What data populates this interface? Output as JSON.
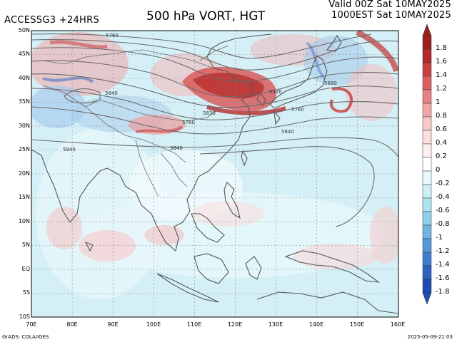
{
  "header": {
    "model_label": "ACCESSG3 +24HRS",
    "title": "500 hPa VORT, HGT",
    "valid_line": "Valid 00Z Sat 10MAY2025",
    "init_line": "1000EST Sat 10MAY2025"
  },
  "map": {
    "lat_labels": [
      "50N",
      "45N",
      "40N",
      "35N",
      "30N",
      "25N",
      "20N",
      "15N",
      "10N",
      "5N",
      "EQ",
      "5S",
      "10S"
    ],
    "lon_labels": [
      "70E",
      "80E",
      "90E",
      "100E",
      "110E",
      "120E",
      "130E",
      "140E",
      "150E",
      "160E"
    ],
    "contour_labels": [
      {
        "text": "5760",
        "name": "contour-label-5760-north"
      },
      {
        "text": "5840",
        "name": "contour-label-5840-tibet"
      },
      {
        "text": "5760",
        "name": "contour-label-5760-china"
      },
      {
        "text": "5830",
        "name": "contour-label-5830"
      },
      {
        "text": "5520",
        "name": "contour-label-5520"
      },
      {
        "text": "5760",
        "name": "contour-label-5760-japan"
      },
      {
        "text": "5680",
        "name": "contour-label-5680"
      },
      {
        "text": "5840",
        "name": "contour-label-5840-east"
      },
      {
        "text": "5840",
        "name": "contour-label-5840-west"
      },
      {
        "text": "5840",
        "name": "contour-label-5840-south-china"
      }
    ]
  },
  "colorbar": {
    "labels": [
      "1.8",
      "1.6",
      "1.4",
      "1.2",
      "1",
      "0.8",
      "0.6",
      "0.4",
      "0.2",
      "0",
      "-0.2",
      "-0.4",
      "-0.6",
      "-0.8",
      "-1",
      "-1.2",
      "-1.4",
      "-1.6",
      "-1.8"
    ],
    "colors": [
      "#9c1f1f",
      "#b52a2a",
      "#cc3f3f",
      "#dd5f5f",
      "#e98282",
      "#f2a7a7",
      "#f8c7c7",
      "#fcdede",
      "#fff0f0",
      "#ffffff",
      "#e8f8fb",
      "#cdeff6",
      "#aee3f1",
      "#8ecfeb",
      "#6fb5e3",
      "#5599da",
      "#3f7dd0",
      "#2d62c2",
      "#1f4cb3"
    ]
  },
  "footer": {
    "credit": "GrADS: COLA/IGES",
    "timestamp": "2025-05-09-21:03"
  }
}
